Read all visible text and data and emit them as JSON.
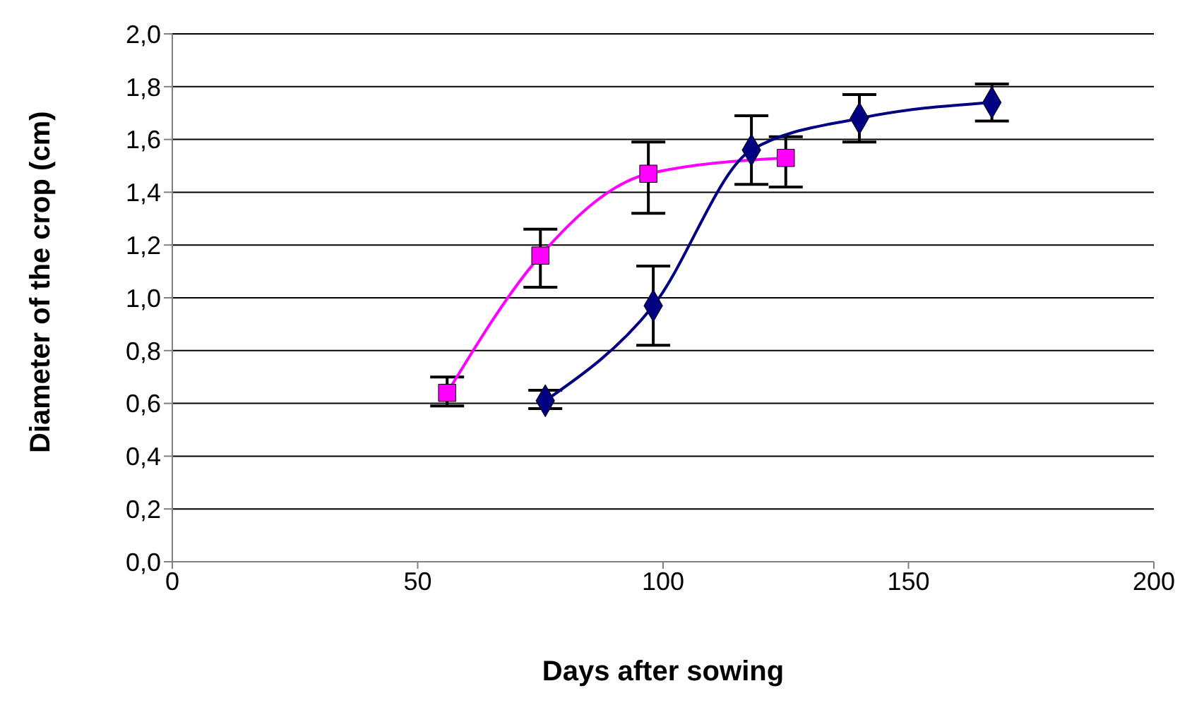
{
  "chart_data": {
    "type": "line",
    "xlabel": "Days after sowing",
    "ylabel": "Diameter of the crop (cm)",
    "xlim": [
      0,
      200
    ],
    "xticks": [
      0,
      50,
      100,
      150,
      200
    ],
    "ylim": [
      0,
      2
    ],
    "yticks": [
      {
        "value": 0,
        "label": "0,0"
      },
      {
        "value": 0.2,
        "label": "0,2"
      },
      {
        "value": 0.4,
        "label": "0,4"
      },
      {
        "value": 0.6,
        "label": "0,6"
      },
      {
        "value": 0.8,
        "label": "0,8"
      },
      {
        "value": 1,
        "label": "1,0"
      },
      {
        "value": 1.2,
        "label": "1,2"
      },
      {
        "value": 1.4,
        "label": "1,4"
      },
      {
        "value": 1.6,
        "label": "1,6"
      },
      {
        "value": 1.8,
        "label": "1,8"
      },
      {
        "value": 2,
        "label": "2,0"
      }
    ],
    "grid": "y",
    "legend": false,
    "series": [
      {
        "color": "#ff00ff",
        "marker": "square",
        "x": [
          56,
          75,
          97,
          125
        ],
        "values": [
          0.64,
          1.16,
          1.47,
          1.53
        ],
        "errors": [
          [
            0.59,
            0.7
          ],
          [
            1.04,
            1.26
          ],
          [
            1.32,
            1.59
          ],
          [
            1.42,
            1.61
          ]
        ]
      },
      {
        "color": "#000080",
        "marker": "diamond",
        "x": [
          76,
          98,
          118,
          140,
          167
        ],
        "values": [
          0.61,
          0.97,
          1.56,
          1.68,
          1.74
        ],
        "errors": [
          [
            0.58,
            0.65
          ],
          [
            0.82,
            1.12
          ],
          [
            1.43,
            1.69
          ],
          [
            1.59,
            1.77
          ],
          [
            1.67,
            1.81
          ]
        ]
      }
    ]
  }
}
